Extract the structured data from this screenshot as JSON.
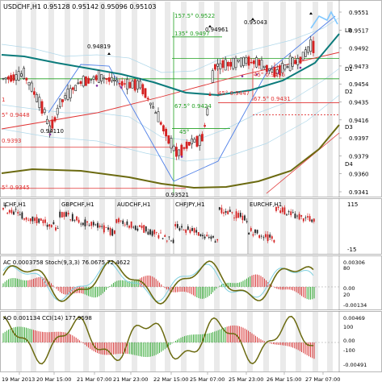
{
  "main_chart": {
    "title": "USDCHF,H1  0.95128 0.95142 0.95096 0.95103",
    "price_labels": [
      "0.9551",
      "0.9517",
      "0.9492",
      "0.9473",
      "0.9454",
      "0.9435",
      "0.9416",
      "0.9397",
      "0.9379",
      "0.9360",
      "0.9341"
    ],
    "right_letters": [
      "LB",
      "D1",
      "D2",
      "D3",
      "D4"
    ],
    "peak_labels": [
      "0.94819",
      "0.94961",
      "0.95043"
    ],
    "trough_labels": [
      "0.94110",
      "0.93521"
    ],
    "fib_labels": [
      "157.5° 0.9522",
      "135° 0.9497",
      "45° 0.9447",
      "45° 0.9455",
      "67.5° 0.9424",
      "67.5° 0.9431",
      "45°"
    ],
    "left_labels": [
      "1",
      "5° 0.9448",
      "0.9393",
      "5° 0.9345"
    ]
  },
  "ichf_panel": {
    "labels": [
      "ICHF,H1",
      "GBPCHF,H1",
      "AUDCHF,H1",
      "CHFJPY,H1",
      "EURCHF,H1"
    ],
    "scale": [
      "115",
      "-15"
    ]
  },
  "ac_panel": {
    "title": "AC 0.0003758  Stoch(9,3,3) 76.0675 72.4622",
    "scale": [
      "0.00306",
      "80",
      "0.00",
      "20",
      "-0.00134"
    ]
  },
  "ao_panel": {
    "title": "AO 0.001134  CCI(14) 177.9598",
    "scale": [
      "0.00469",
      "100",
      "0.00",
      "-100",
      "-0.00491"
    ]
  },
  "time_axis": [
    "19 Mar 2013",
    "20 Mar 15:00",
    "21 Mar 07:00",
    "21 Mar 23:00",
    "22 Mar 15:00",
    "25 Mar 07:00",
    "25 Mar 23:00",
    "26 Mar 15:00",
    "27 Mar 07:00"
  ],
  "colors": {
    "candle_up": "#222222",
    "candle_down": "#d42020",
    "teal": "#0b7b7b",
    "olive": "#6b6a10",
    "green": "#20a020",
    "red_line": "#e03030",
    "blue_line": "#5080e8",
    "light_blue": "#80c8ff",
    "purple": "#8030a0",
    "grid_band": "#d8d8d8"
  }
}
